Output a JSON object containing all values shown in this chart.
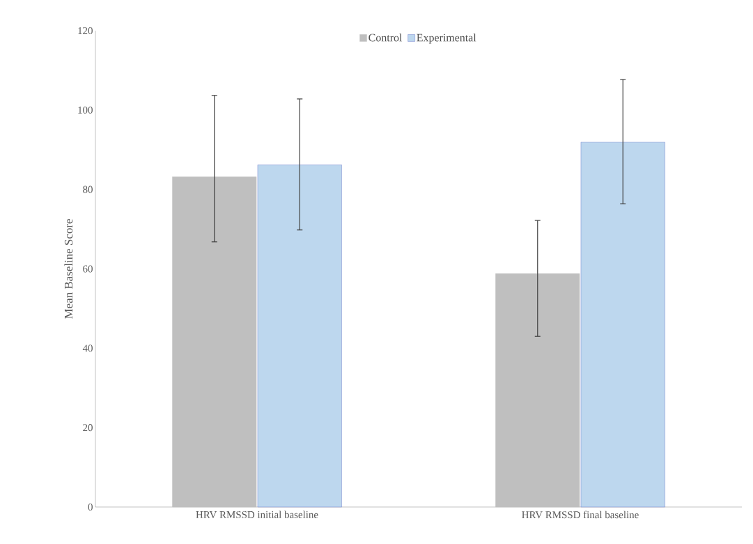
{
  "chart_data": {
    "type": "bar",
    "ylabel": "Mean Baseline Score",
    "categories": [
      "HRV RMSSD initial baseline",
      "HRV RMSSD final baseline"
    ],
    "series": [
      {
        "name": "Control",
        "color": "#bfbfbf",
        "values": [
          83.2,
          58.8
        ],
        "errors": [
          [
            66.8,
            103.7
          ],
          [
            43.0,
            72.2
          ]
        ]
      },
      {
        "name": "Experimental",
        "color": "#bdd7ee",
        "values": [
          86.2,
          91.9
        ],
        "errors": [
          [
            69.8,
            102.8
          ],
          [
            76.4,
            107.7
          ]
        ]
      }
    ],
    "ylim": [
      0,
      120
    ],
    "yticks": [
      0,
      20,
      40,
      60,
      80,
      100,
      120
    ],
    "grid": false,
    "legend": "top"
  }
}
